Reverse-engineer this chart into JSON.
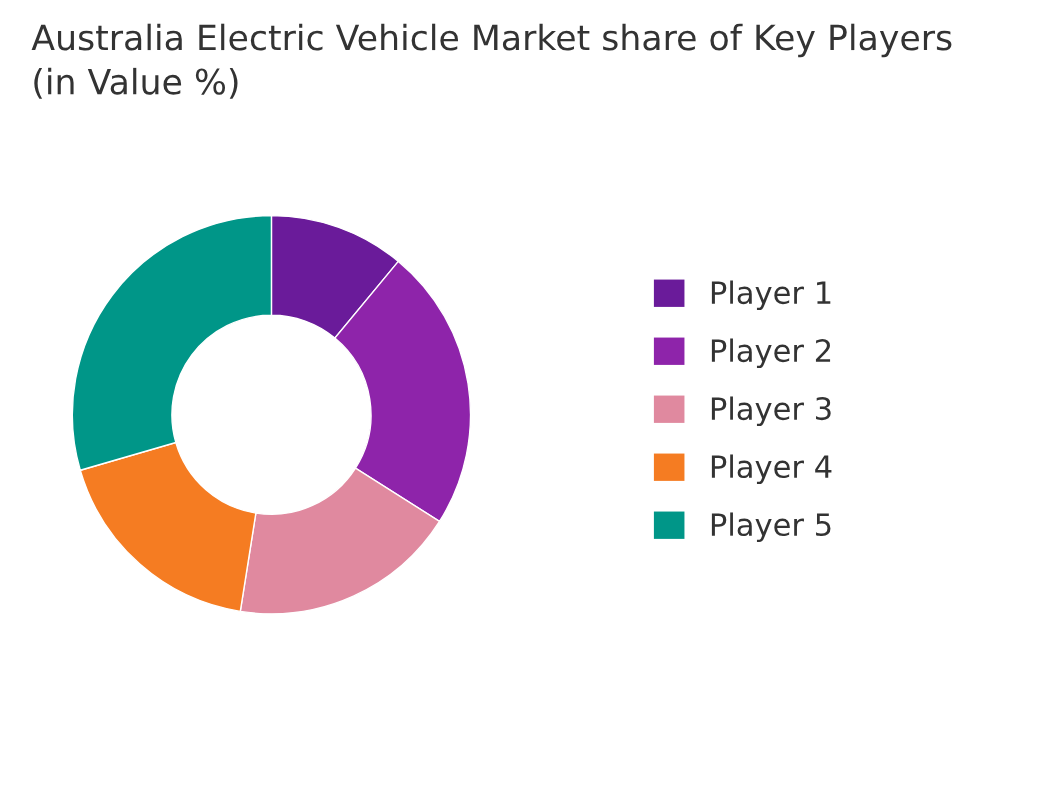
{
  "chart_data": {
    "type": "donut",
    "title": "Australia Electric Vehicle Market share of Key Players\n(in Value %)",
    "categories": [
      "Player 1",
      "Player 2",
      "Player 3",
      "Player 4",
      "Player 5"
    ],
    "values": [
      11,
      23,
      18.5,
      18,
      29.5
    ],
    "colors": [
      "#6a1b9a",
      "#8e24aa",
      "#e0899f",
      "#f57c22",
      "#009688"
    ],
    "legend": "right"
  }
}
